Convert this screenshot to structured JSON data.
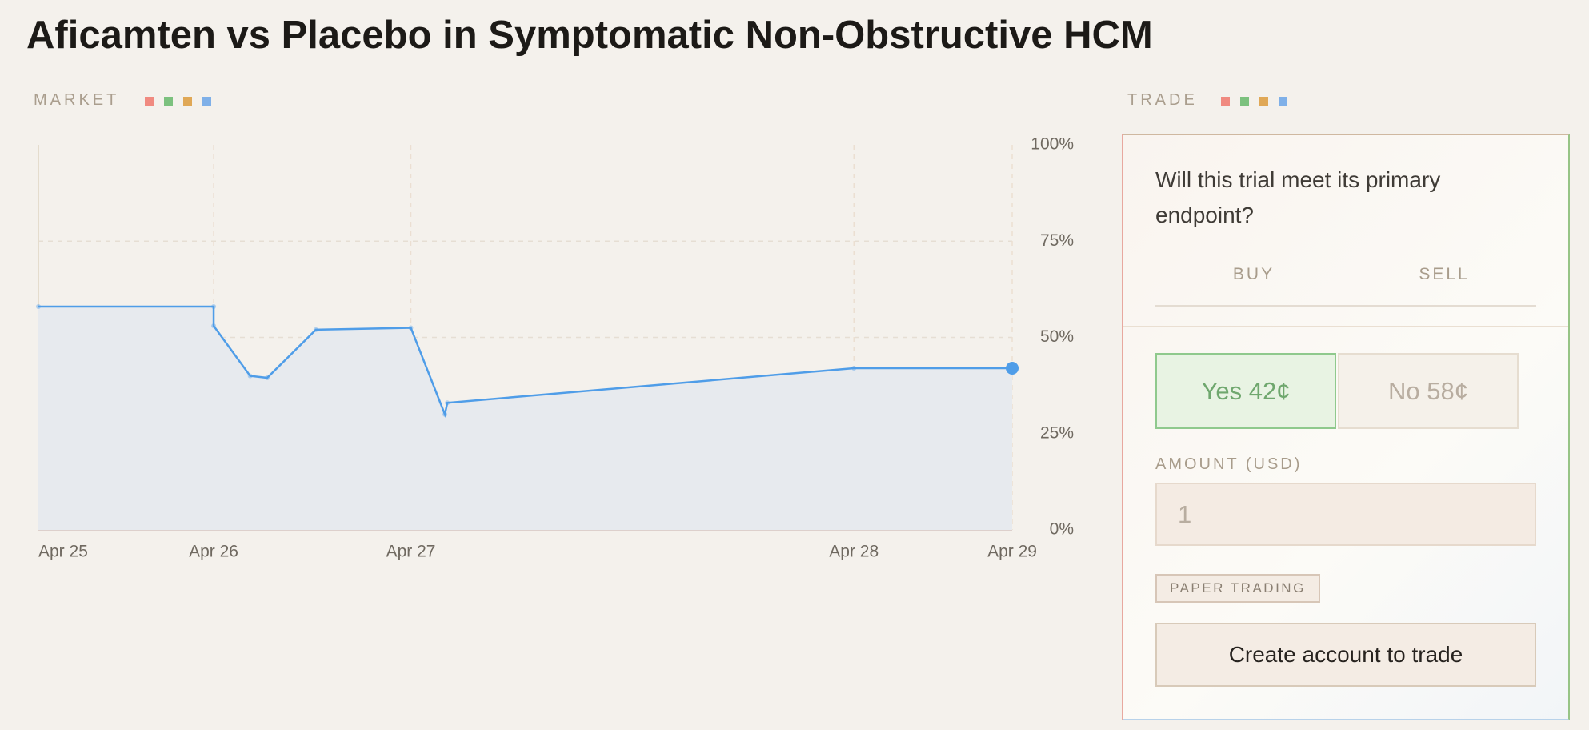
{
  "header": {
    "title": "Aficamten vs Placebo in Symptomatic Non-Obstructive HCM"
  },
  "market": {
    "label": "MARKET"
  },
  "chart_data": {
    "type": "line",
    "x": [
      25,
      25.72,
      25.72,
      25.87,
      25.94,
      26.14,
      26.53,
      26.67,
      26.68,
      28.35,
      29
    ],
    "values": [
      58,
      58,
      53,
      40,
      39.5,
      52,
      52.5,
      30,
      33,
      42,
      42
    ],
    "color": "#4f9de8",
    "xlim": [
      25,
      29
    ],
    "xticks": [
      {
        "value": 25,
        "label": "Apr 25"
      },
      {
        "value": 25.72,
        "label": "Apr 26"
      },
      {
        "value": 26.53,
        "label": "Apr 27"
      },
      {
        "value": 28.35,
        "label": "Apr 28"
      },
      {
        "value": 29,
        "label": "Apr 29"
      }
    ],
    "ylim": [
      0,
      100
    ],
    "yticks": [
      {
        "value": 0,
        "label": "0%"
      },
      {
        "value": 25,
        "label": "25%"
      },
      {
        "value": 50,
        "label": "50%"
      },
      {
        "value": 75,
        "label": "75%"
      },
      {
        "value": 100,
        "label": "100%"
      }
    ],
    "grid": true
  },
  "trade": {
    "label": "TRADE",
    "question": "Will this trial meet its primary endpoint?",
    "tabs": [
      "BUY",
      "SELL"
    ],
    "outcomes": [
      "Yes 42¢",
      "No 58¢"
    ],
    "amount_label": "AMOUNT (USD)",
    "amount_placeholder": "1",
    "paper_trading": "PAPER TRADING",
    "cta": "Create account to trade"
  }
}
